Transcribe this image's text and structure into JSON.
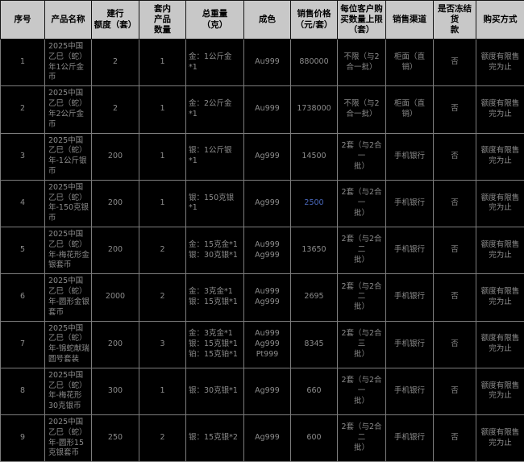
{
  "page": {
    "background": "#000000"
  },
  "colors": {
    "header_bg": "#c8c8c8",
    "header_text": "#000000",
    "body_bg": "#000000",
    "body_text": "#8c8c8c",
    "grid_border": "#7d7d7d",
    "link_blue": "#4a69bd"
  },
  "table": {
    "columns": [
      {
        "key": "seq",
        "label": "序号",
        "width": 55
      },
      {
        "key": "name",
        "label": "产品名称",
        "width": 58
      },
      {
        "key": "quota",
        "label": "建行\n额度（套）",
        "width": 59
      },
      {
        "key": "count",
        "label": "套内\n产品\n数量",
        "width": 58
      },
      {
        "key": "weight",
        "label": "总重量\n（克）",
        "width": 72
      },
      {
        "key": "fineness",
        "label": "成色",
        "width": 58
      },
      {
        "key": "price",
        "label": "销售价格\n（元/套）",
        "width": 58
      },
      {
        "key": "limit",
        "label": "每位客户购\n买数量上限\n（套）",
        "width": 60
      },
      {
        "key": "channel",
        "label": "销售渠道",
        "width": 59
      },
      {
        "key": "freeze",
        "label": "是否冻结货\n款",
        "width": 53
      },
      {
        "key": "method",
        "label": "购买方式",
        "width": 60
      }
    ],
    "rows": [
      {
        "seq": "1",
        "name": "2025中国乙巳（蛇）年1公斤金币",
        "quota": "2",
        "count": "1",
        "weight": "金：1公斤金\n*1",
        "fineness": "Au999",
        "price": "880000",
        "limit": "不限（与2\n合一批）",
        "channel": "柜面（直\n销）",
        "freeze": "否",
        "method": "额度有限售\n完为止"
      },
      {
        "seq": "2",
        "name": "2025中国乙巳（蛇）年2公斤金币",
        "quota": "2",
        "count": "1",
        "weight": "金：2公斤金\n*1",
        "fineness": "Au999",
        "price": "1738000",
        "limit": "不限（与2\n合一批）",
        "channel": "柜面（直\n销）",
        "freeze": "否",
        "method": "额度有限售\n完为止"
      },
      {
        "seq": "3",
        "name": "2025中国乙巳（蛇）年-1公斤银币",
        "quota": "200",
        "count": "1",
        "weight": "银：1公斤银\n*1",
        "fineness": "Ag999",
        "price": "14500",
        "limit": "2套（与2合一\n批）",
        "channel": "手机银行",
        "freeze": "否",
        "method": "额度有限售\n完为止"
      },
      {
        "seq": "4",
        "name": "2025中国乙巳（蛇）年-150克银币",
        "quota": "200",
        "count": "1",
        "weight": "银：150克银\n*1",
        "fineness": "Ag999",
        "price": "2500",
        "price_link": true,
        "limit": "2套（与2合一\n批）",
        "channel": "手机银行",
        "freeze": "否",
        "method": "额度有限售\n完为止"
      },
      {
        "seq": "5",
        "name": "2025中国乙巳（蛇）年-梅花形金银套币",
        "quota": "200",
        "count": "2",
        "weight": "金：15克金*1\n银：30克银*1",
        "fineness": "Au999\nAg999",
        "price": "13650",
        "limit": "2套（与2合二\n批）",
        "channel": "手机银行",
        "freeze": "否",
        "method": "额度有限售\n完为止"
      },
      {
        "seq": "6",
        "name": "2025中国乙巳（蛇）年-圆形金银套币",
        "quota": "2000",
        "count": "2",
        "weight": "金：3克金*1\n银：15克银*1",
        "fineness": "Au999\nAg999",
        "price": "2695",
        "limit": "2套（与2合二\n批）",
        "channel": "手机银行",
        "freeze": "否",
        "method": "额度有限售\n完为止"
      },
      {
        "seq": "7",
        "name": "2025中国乙巳（蛇）年-锦蛇献瑞圆号套装",
        "quota": "200",
        "count": "3",
        "weight": "金：3克金*1\n银：15克银*1\n铂：15克铂*1",
        "fineness": "Au999\nAg999\nPt999",
        "price": "8345",
        "limit": "2套（与2合三\n批）",
        "channel": "手机银行",
        "freeze": "否",
        "method": "额度有限售\n完为止"
      },
      {
        "seq": "8",
        "name": "2025中国乙巳（蛇）年-梅花形30克银币",
        "quota": "300",
        "count": "1",
        "weight": "银：30克银*1",
        "fineness": "Ag999",
        "price": "660",
        "limit": "2套（与2合一\n批）",
        "channel": "手机银行",
        "freeze": "否",
        "method": "额度有限售\n完为止"
      },
      {
        "seq": "9",
        "name": "2025中国乙巳（蛇）年-圆形15克银套币",
        "quota": "250",
        "count": "2",
        "weight": "银：15克银*2",
        "fineness": "Ag999",
        "price": "600",
        "limit": "2套（与2合二\n批）",
        "channel": "手机银行",
        "freeze": "否",
        "method": "额度有限售\n完为止"
      }
    ]
  }
}
